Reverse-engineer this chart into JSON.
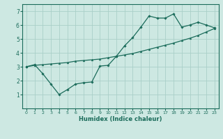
{
  "background_color": "#cde8e2",
  "grid_color": "#aacfc8",
  "line_color": "#1a6b5a",
  "xlabel": "Humidex (Indice chaleur)",
  "xlim": [
    -0.5,
    23.5
  ],
  "ylim": [
    0,
    7.5
  ],
  "xticks": [
    0,
    1,
    2,
    3,
    4,
    5,
    6,
    7,
    8,
    9,
    10,
    11,
    12,
    13,
    14,
    15,
    16,
    17,
    18,
    19,
    20,
    21,
    22,
    23
  ],
  "yticks": [
    1,
    2,
    3,
    4,
    5,
    6,
    7
  ],
  "line1_x": [
    0,
    1,
    2,
    3,
    4,
    5,
    6,
    7,
    8,
    9,
    10,
    11,
    12,
    13,
    14,
    15,
    16,
    17,
    18,
    19,
    20,
    21,
    22,
    23
  ],
  "line1_y": [
    3.0,
    3.1,
    3.15,
    3.2,
    3.25,
    3.3,
    3.4,
    3.45,
    3.5,
    3.55,
    3.65,
    3.75,
    3.85,
    3.95,
    4.1,
    4.25,
    4.4,
    4.55,
    4.7,
    4.88,
    5.05,
    5.25,
    5.5,
    5.75
  ],
  "line2_x": [
    0,
    1,
    2,
    3,
    4,
    5,
    6,
    7,
    8,
    9,
    10,
    11,
    12,
    13,
    14,
    15,
    16,
    17,
    18,
    19,
    20,
    21,
    22,
    23
  ],
  "line2_y": [
    3.0,
    3.15,
    2.5,
    1.75,
    1.0,
    1.35,
    1.75,
    1.85,
    1.9,
    3.05,
    3.1,
    3.75,
    4.5,
    5.1,
    5.85,
    6.65,
    6.5,
    6.5,
    6.8,
    5.85,
    6.0,
    6.2,
    6.0,
    5.8
  ]
}
